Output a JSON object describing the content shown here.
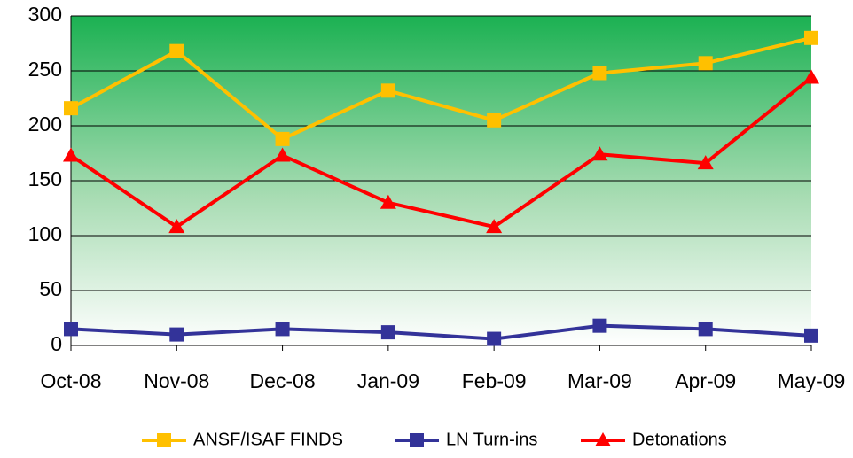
{
  "chart_data": {
    "type": "line",
    "categories": [
      "Oct-08",
      "Nov-08",
      "Dec-08",
      "Jan-09",
      "Feb-09",
      "Mar-09",
      "Apr-09",
      "May-09"
    ],
    "series": [
      {
        "name": "ANSF/ISAF FINDS",
        "color": "#ffc000",
        "marker": "square",
        "values": [
          216,
          268,
          188,
          232,
          205,
          248,
          257,
          280
        ]
      },
      {
        "name": "LN Turn-ins",
        "color": "#333399",
        "marker": "square",
        "values": [
          15,
          10,
          15,
          12,
          6,
          18,
          15,
          9
        ]
      },
      {
        "name": "Detonations",
        "color": "#ff0000",
        "marker": "triangle",
        "values": [
          173,
          108,
          173,
          130,
          108,
          174,
          166,
          244
        ]
      }
    ],
    "ylim": [
      0,
      300
    ],
    "yticks": [
      0,
      50,
      100,
      150,
      200,
      250,
      300
    ],
    "grid": true,
    "legend": "bottom"
  }
}
